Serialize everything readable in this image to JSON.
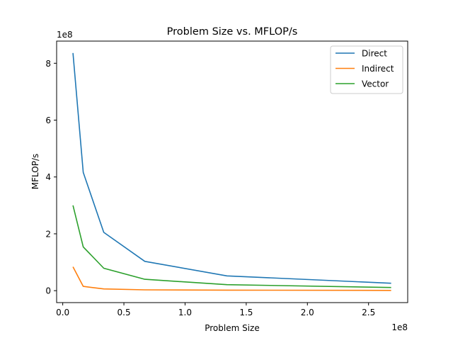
{
  "chart_data": {
    "type": "line",
    "title": "Problem Size vs. MFLOP/s",
    "xlabel": "Problem Size",
    "ylabel": "MFLOP/s",
    "x_offset_label": "1e8",
    "y_offset_label": "1e8",
    "xlim": [
      -5000000.0,
      282000000.0
    ],
    "ylim": [
      -42000000.0,
      878000000.0
    ],
    "x_ticks": [
      0,
      50000000.0,
      100000000.0,
      150000000.0,
      200000000.0,
      250000000.0
    ],
    "x_tick_labels": [
      "0.0",
      "0.5",
      "1.0",
      "1.5",
      "2.0",
      "2.5"
    ],
    "y_ticks": [
      0,
      200000000.0,
      400000000.0,
      600000000.0,
      800000000.0
    ],
    "y_tick_labels": [
      "0",
      "2",
      "4",
      "6",
      "8"
    ],
    "grid": false,
    "legend_position": "top-right",
    "x": [
      8388608,
      16777216,
      33554432,
      67108864,
      134217728,
      268435456
    ],
    "series": [
      {
        "name": "Direct",
        "color": "#1f77b4",
        "values": [
          836000000.0,
          416000000.0,
          205000000.0,
          103000000.0,
          52000000.0,
          26000000.0
        ]
      },
      {
        "name": "Indirect",
        "color": "#ff7f0e",
        "values": [
          84000000.0,
          15000000.0,
          6000000.0,
          3000000.0,
          2000000.0,
          1000000.0
        ]
      },
      {
        "name": "Vector",
        "color": "#2ca02c",
        "values": [
          300000000.0,
          154000000.0,
          79000000.0,
          40000000.0,
          21000000.0,
          11000000.0
        ]
      }
    ]
  }
}
